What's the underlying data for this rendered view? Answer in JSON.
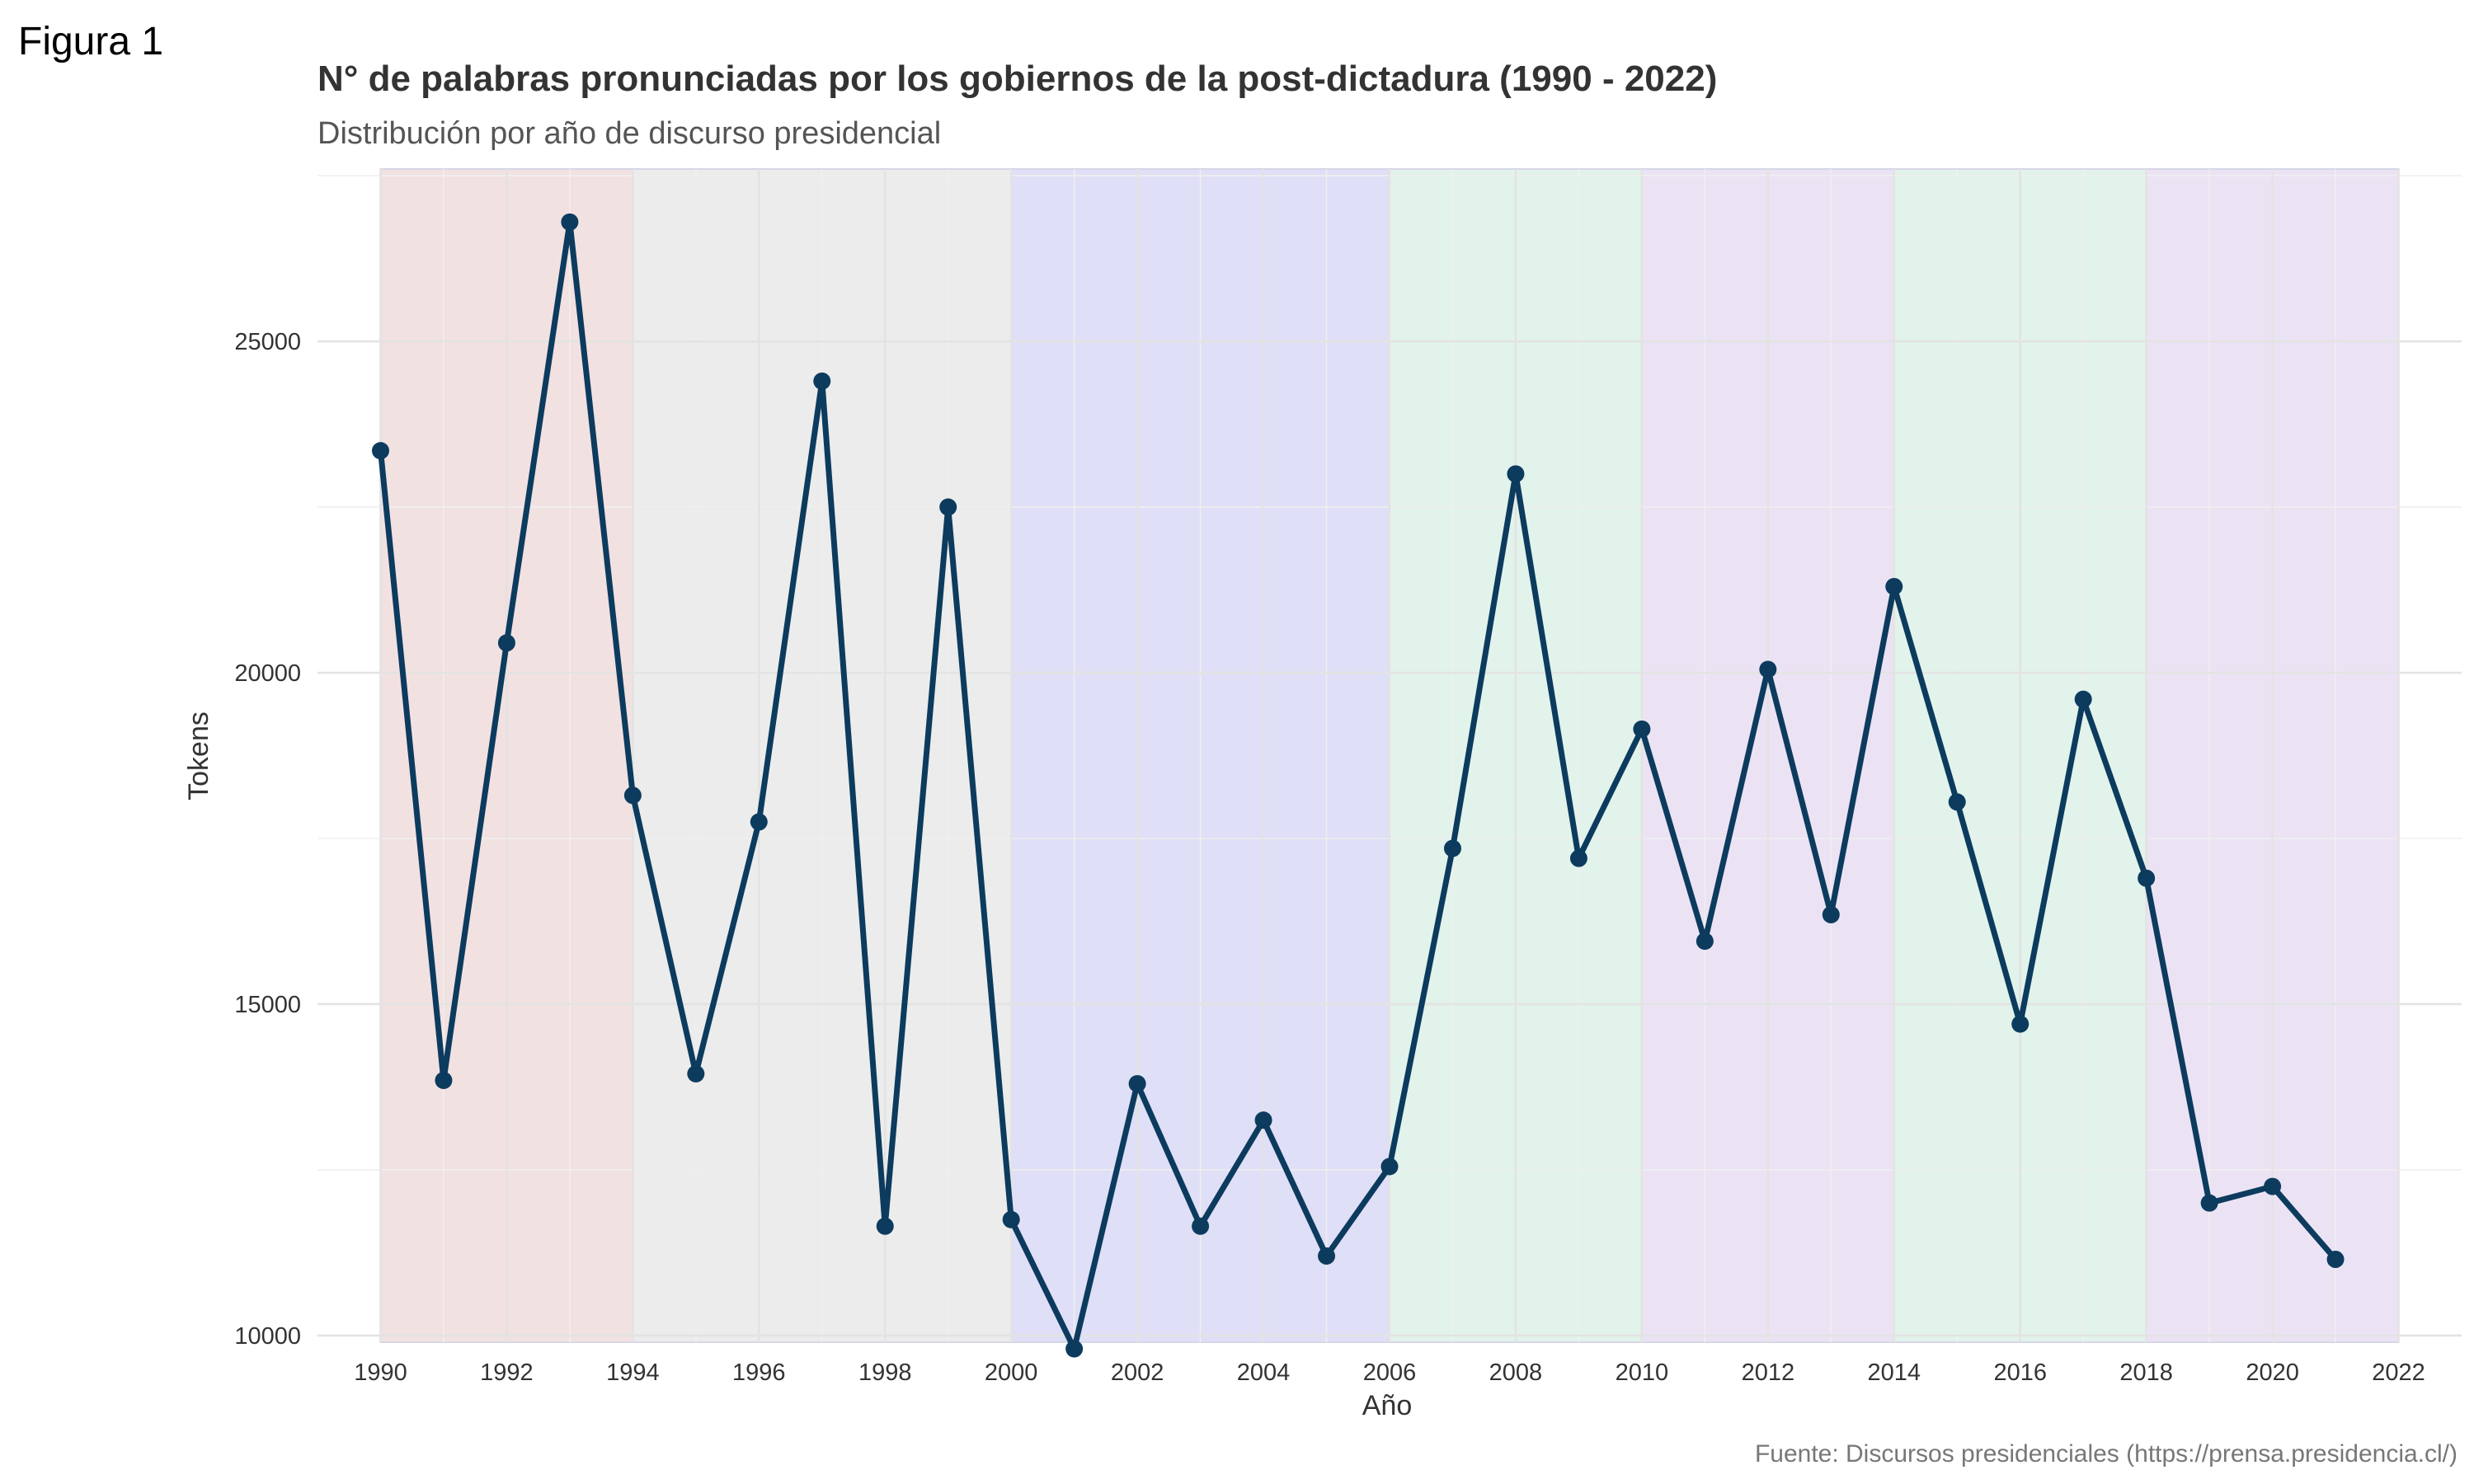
{
  "figure_label": "Figura 1",
  "chart_data": {
    "type": "line",
    "title": "N° de palabras pronunciadas por los gobiernos de la post-dictadura (1990 - 2022)",
    "subtitle": "Distribución por año de discurso presidencial",
    "xlabel": "Año",
    "ylabel": "Tokens",
    "caption": "Fuente: Discursos presidenciales (https://prensa.presidencia.cl/)",
    "xlim": [
      1989,
      2023
    ],
    "ylim": [
      9900,
      27600
    ],
    "x_ticks": [
      1990,
      1992,
      1994,
      1996,
      1998,
      2000,
      2002,
      2004,
      2006,
      2008,
      2010,
      2012,
      2014,
      2016,
      2018,
      2020,
      2022
    ],
    "x_tick_labels": [
      "1990",
      "1992",
      "1994",
      "1996",
      "1998",
      "2000",
      "2002",
      "2004",
      "2006",
      "2008",
      "2010",
      "2012",
      "2014",
      "2016",
      "2018",
      "2020",
      "2022"
    ],
    "y_ticks": [
      10000,
      15000,
      20000,
      25000
    ],
    "y_tick_labels": [
      "10000",
      "15000",
      "20000",
      "25000"
    ],
    "grid": true,
    "line_color": "#0c3b5e",
    "x": [
      1990,
      1991,
      1992,
      1993,
      1994,
      1995,
      1996,
      1997,
      1998,
      1999,
      2000,
      2001,
      2002,
      2003,
      2004,
      2005,
      2006,
      2007,
      2008,
      2009,
      2010,
      2011,
      2012,
      2013,
      2014,
      2015,
      2016,
      2017,
      2018,
      2019,
      2020,
      2021
    ],
    "y": [
      23350,
      13850,
      20450,
      26800,
      18150,
      13950,
      17750,
      24400,
      11650,
      22500,
      11750,
      9800,
      13800,
      11650,
      13250,
      11200,
      12550,
      17350,
      23000,
      17200,
      19150,
      15950,
      20050,
      16350,
      21300,
      18050,
      14700,
      19600,
      16900,
      12000,
      12250,
      11150
    ],
    "periods": [
      {
        "start": 1990,
        "end": 1994,
        "color": "#f2e1e1"
      },
      {
        "start": 1994,
        "end": 2000,
        "color": "#ececec"
      },
      {
        "start": 2000,
        "end": 2006,
        "color": "#dfdff7"
      },
      {
        "start": 2006,
        "end": 2010,
        "color": "#e2f3eb"
      },
      {
        "start": 2010,
        "end": 2014,
        "color": "#ebe3f4"
      },
      {
        "start": 2014,
        "end": 2018,
        "color": "#e2f3eb"
      },
      {
        "start": 2018,
        "end": 2022,
        "color": "#ebe3f4"
      }
    ]
  }
}
